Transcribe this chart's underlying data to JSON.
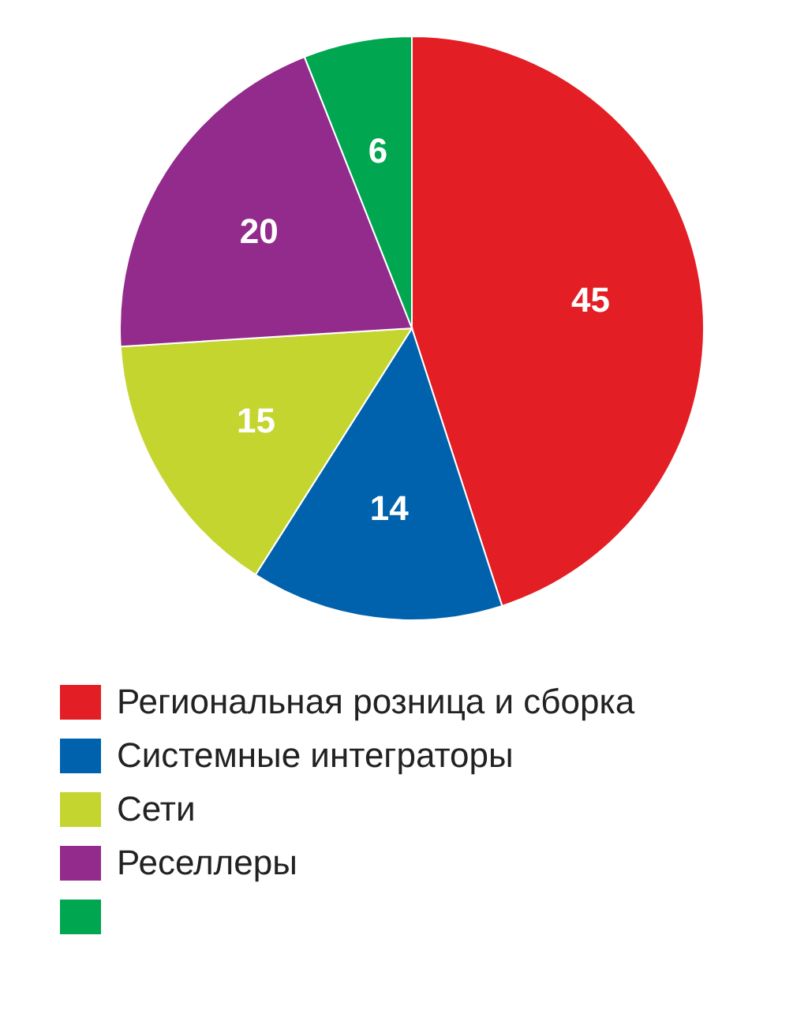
{
  "chart_data": {
    "type": "pie",
    "categories": [
      "Региональная розница и сборка",
      "Системные интеграторы",
      "Сети",
      "Реселлеры",
      null
    ],
    "values": [
      45,
      14,
      15,
      20,
      6
    ],
    "colors": [
      "#e31e24",
      "#0062ad",
      "#c5d52f",
      "#922b8c",
      "#00a650"
    ],
    "data_labels": true,
    "legend": "bottom"
  }
}
